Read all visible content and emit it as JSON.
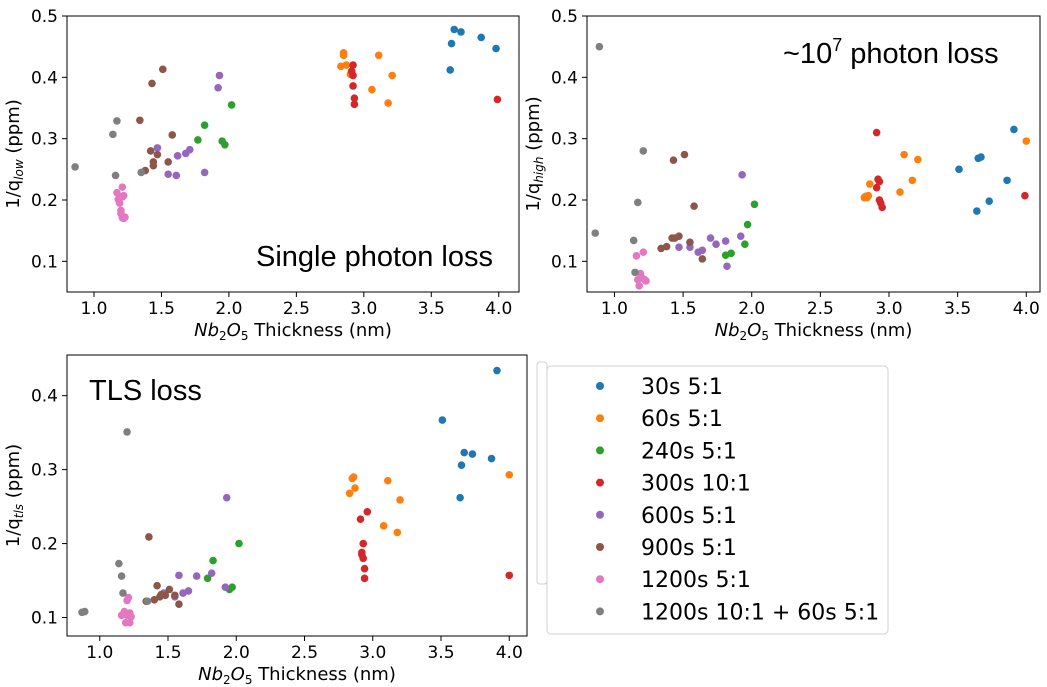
{
  "colors": {
    "30s 5:1": "#1f77b4",
    "60s 5:1": "#ff7f0e",
    "240s 5:1": "#2ca02c",
    "300s 10:1": "#d62728",
    "600s 5:1": "#9467bd",
    "900s 5:1": "#8c564b",
    "1200s 5:1": "#e377c2",
    "1200s 10:1 + 60s 5:1": "#7f7f7f"
  },
  "legend": {
    "entries": [
      "30s 5:1",
      "60s 5:1",
      "240s 5:1",
      "300s 10:1",
      "600s 5:1",
      "900s 5:1",
      "1200s 5:1",
      "1200s 10:1 + 60s 5:1"
    ]
  },
  "chart_data": [
    {
      "id": "low",
      "type": "scatter",
      "annotation": "Single photon loss",
      "xlabel_main": "Nb",
      "xlabel_sub1": "2",
      "xlabel_mid": "O",
      "xlabel_sub2": "5",
      "xlabel_rest": " Thickness (nm)",
      "ylabel_main": "1/q",
      "ylabel_sub": "low",
      "ylabel_rest": " (ppm)",
      "xlim": [
        0.8,
        4.15
      ],
      "ylim": [
        0.05,
        0.5
      ],
      "xticks": [
        1.0,
        1.5,
        2.0,
        2.5,
        3.0,
        3.5,
        4.0
      ],
      "xtick_labels": [
        "1.0",
        "1.5",
        "2.0",
        "2.5",
        "3.0",
        "3.5",
        "4.0"
      ],
      "yticks": [
        0.1,
        0.2,
        0.3,
        0.4,
        0.5
      ],
      "ytick_labels": [
        "0.1",
        "0.2",
        "0.3",
        "0.4",
        "0.5"
      ],
      "series": [
        {
          "name": "30s 5:1",
          "points": [
            [
              3.64,
              0.412
            ],
            [
              3.65,
              0.455
            ],
            [
              3.67,
              0.478
            ],
            [
              3.72,
              0.474
            ],
            [
              3.87,
              0.465
            ],
            [
              3.98,
              0.447
            ]
          ]
        },
        {
          "name": "60s 5:1",
          "points": [
            [
              2.83,
              0.418
            ],
            [
              2.85,
              0.436
            ],
            [
              2.85,
              0.44
            ],
            [
              2.87,
              0.42
            ],
            [
              2.9,
              0.405
            ],
            [
              3.06,
              0.38
            ],
            [
              3.11,
              0.436
            ],
            [
              3.18,
              0.358
            ],
            [
              3.21,
              0.403
            ]
          ]
        },
        {
          "name": "240s 5:1",
          "points": [
            [
              1.77,
              0.298
            ],
            [
              1.82,
              0.322
            ],
            [
              1.95,
              0.296
            ],
            [
              1.97,
              0.29
            ],
            [
              2.02,
              0.355
            ]
          ]
        },
        {
          "name": "300s 10:1",
          "points": [
            [
              2.91,
              0.41
            ],
            [
              2.92,
              0.42
            ],
            [
              2.92,
              0.403
            ],
            [
              2.92,
              0.386
            ],
            [
              2.93,
              0.366
            ],
            [
              2.93,
              0.356
            ],
            [
              3.99,
              0.364
            ]
          ]
        },
        {
          "name": "600s 5:1",
          "points": [
            [
              1.47,
              0.285
            ],
            [
              1.55,
              0.242
            ],
            [
              1.61,
              0.24
            ],
            [
              1.62,
              0.272
            ],
            [
              1.68,
              0.276
            ],
            [
              1.71,
              0.282
            ],
            [
              1.82,
              0.245
            ],
            [
              1.92,
              0.383
            ],
            [
              1.93,
              0.403
            ]
          ]
        },
        {
          "name": "900s 5:1",
          "points": [
            [
              1.34,
              0.33
            ],
            [
              1.38,
              0.248
            ],
            [
              1.42,
              0.28
            ],
            [
              1.43,
              0.39
            ],
            [
              1.44,
              0.262
            ],
            [
              1.44,
              0.256
            ],
            [
              1.47,
              0.274
            ],
            [
              1.51,
              0.413
            ],
            [
              1.55,
              0.262
            ],
            [
              1.58,
              0.306
            ]
          ]
        },
        {
          "name": "1200s 5:1",
          "points": [
            [
              1.17,
              0.212
            ],
            [
              1.18,
              0.201
            ],
            [
              1.19,
              0.195
            ],
            [
              1.2,
              0.178
            ],
            [
              1.2,
              0.183
            ],
            [
              1.21,
              0.171
            ],
            [
              1.22,
              0.17
            ],
            [
              1.23,
              0.172
            ],
            [
              1.21,
              0.205
            ],
            [
              1.22,
              0.207
            ],
            [
              1.21,
              0.221
            ]
          ]
        },
        {
          "name": "1200s 10:1 + 60s 5:1",
          "points": [
            [
              0.86,
              0.254
            ],
            [
              1.14,
              0.307
            ],
            [
              1.16,
              0.24
            ],
            [
              1.17,
              0.329
            ],
            [
              1.35,
              0.245
            ]
          ]
        }
      ]
    },
    {
      "id": "high",
      "type": "scatter",
      "annotation_base": "~10",
      "annotation_sup": "7",
      "annotation_rest": " photon loss",
      "xlabel_main": "Nb",
      "xlabel_sub1": "2",
      "xlabel_mid": "O",
      "xlabel_sub2": "5",
      "xlabel_rest": " Thickness (nm)",
      "ylabel_main": "1/q",
      "ylabel_sub": "high",
      "ylabel_rest": " (ppm)",
      "xlim": [
        0.8,
        4.1
      ],
      "ylim": [
        0.05,
        0.5
      ],
      "xticks": [
        1.0,
        1.5,
        2.0,
        2.5,
        3.0,
        3.5,
        4.0
      ],
      "xtick_labels": [
        "1.0",
        "1.5",
        "2.0",
        "2.5",
        "3.0",
        "3.5",
        "4.0"
      ],
      "yticks": [
        0.1,
        0.2,
        0.3,
        0.4,
        0.5
      ],
      "ytick_labels": [
        "0.1",
        "0.2",
        "0.3",
        "0.4",
        "0.5"
      ],
      "series": [
        {
          "name": "30s 5:1",
          "points": [
            [
              3.51,
              0.25
            ],
            [
              3.64,
              0.182
            ],
            [
              3.65,
              0.268
            ],
            [
              3.67,
              0.27
            ],
            [
              3.73,
              0.198
            ],
            [
              3.86,
              0.232
            ],
            [
              3.91,
              0.315
            ]
          ]
        },
        {
          "name": "60s 5:1",
          "points": [
            [
              2.82,
              0.204
            ],
            [
              2.83,
              0.206
            ],
            [
              2.84,
              0.204
            ],
            [
              2.85,
              0.207
            ],
            [
              2.86,
              0.226
            ],
            [
              3.08,
              0.213
            ],
            [
              3.11,
              0.274
            ],
            [
              3.17,
              0.232
            ],
            [
              3.21,
              0.266
            ],
            [
              4.0,
              0.296
            ]
          ]
        },
        {
          "name": "240s 5:1",
          "points": [
            [
              1.81,
              0.11
            ],
            [
              1.85,
              0.113
            ],
            [
              1.95,
              0.128
            ],
            [
              1.97,
              0.16
            ],
            [
              2.02,
              0.193
            ]
          ]
        },
        {
          "name": "300s 10:1",
          "points": [
            [
              2.91,
              0.31
            ],
            [
              2.91,
              0.22
            ],
            [
              2.92,
              0.234
            ],
            [
              2.93,
              0.23
            ],
            [
              2.93,
              0.2
            ],
            [
              2.94,
              0.195
            ],
            [
              2.95,
              0.188
            ],
            [
              3.99,
              0.207
            ]
          ]
        },
        {
          "name": "600s 5:1",
          "points": [
            [
              1.47,
              0.123
            ],
            [
              1.55,
              0.123
            ],
            [
              1.61,
              0.115
            ],
            [
              1.64,
              0.118
            ],
            [
              1.7,
              0.138
            ],
            [
              1.74,
              0.128
            ],
            [
              1.81,
              0.133
            ],
            [
              1.82,
              0.092
            ],
            [
              1.92,
              0.141
            ],
            [
              1.93,
              0.241
            ]
          ]
        },
        {
          "name": "900s 5:1",
          "points": [
            [
              1.34,
              0.121
            ],
            [
              1.38,
              0.124
            ],
            [
              1.42,
              0.138
            ],
            [
              1.43,
              0.265
            ],
            [
              1.44,
              0.138
            ],
            [
              1.47,
              0.141
            ],
            [
              1.51,
              0.274
            ],
            [
              1.55,
              0.131
            ],
            [
              1.58,
              0.19
            ],
            [
              1.64,
              0.104
            ]
          ]
        },
        {
          "name": "1200s 5:1",
          "points": [
            [
              1.16,
              0.109
            ],
            [
              1.17,
              0.07
            ],
            [
              1.18,
              0.06
            ],
            [
              1.19,
              0.08
            ],
            [
              1.2,
              0.073
            ],
            [
              1.21,
              0.115
            ],
            [
              1.22,
              0.07
            ],
            [
              1.23,
              0.068
            ]
          ]
        },
        {
          "name": "1200s 10:1 + 60s 5:1",
          "points": [
            [
              0.86,
              0.146
            ],
            [
              0.89,
              0.45
            ],
            [
              1.14,
              0.134
            ],
            [
              1.15,
              0.082
            ],
            [
              1.17,
              0.196
            ],
            [
              1.21,
              0.28
            ]
          ]
        }
      ]
    },
    {
      "id": "tls",
      "type": "scatter",
      "annotation": "TLS loss",
      "xlabel_main": "Nb",
      "xlabel_sub1": "2",
      "xlabel_mid": "O",
      "xlabel_sub2": "5",
      "xlabel_rest": " Thickness (nm)",
      "ylabel_main": "1/q",
      "ylabel_sub": "tls",
      "ylabel_rest": " (ppm)",
      "xlim": [
        0.76,
        4.13
      ],
      "ylim": [
        0.075,
        0.455
      ],
      "xticks": [
        1.0,
        1.5,
        2.0,
        2.5,
        3.0,
        3.5,
        4.0
      ],
      "xtick_labels": [
        "1.0",
        "1.5",
        "2.0",
        "2.5",
        "3.0",
        "3.5",
        "4.0"
      ],
      "yticks": [
        0.1,
        0.2,
        0.3,
        0.4
      ],
      "ytick_labels": [
        "0.1",
        "0.2",
        "0.3",
        "0.4"
      ],
      "series": [
        {
          "name": "30s 5:1",
          "points": [
            [
              3.51,
              0.367
            ],
            [
              3.64,
              0.262
            ],
            [
              3.65,
              0.306
            ],
            [
              3.67,
              0.323
            ],
            [
              3.73,
              0.321
            ],
            [
              3.87,
              0.315
            ],
            [
              3.91,
              0.434
            ]
          ]
        },
        {
          "name": "60s 5:1",
          "points": [
            [
              2.83,
              0.268
            ],
            [
              2.85,
              0.288
            ],
            [
              2.86,
              0.29
            ],
            [
              2.87,
              0.275
            ],
            [
              3.08,
              0.224
            ],
            [
              3.11,
              0.285
            ],
            [
              3.18,
              0.215
            ],
            [
              3.2,
              0.259
            ],
            [
              4.0,
              0.293
            ]
          ]
        },
        {
          "name": "240s 5:1",
          "points": [
            [
              1.79,
              0.153
            ],
            [
              1.83,
              0.177
            ],
            [
              1.95,
              0.138
            ],
            [
              1.97,
              0.141
            ],
            [
              2.02,
              0.2
            ]
          ]
        },
        {
          "name": "300s 10:1",
          "points": [
            [
              2.91,
              0.233
            ],
            [
              2.92,
              0.185
            ],
            [
              2.92,
              0.188
            ],
            [
              2.93,
              0.2
            ],
            [
              2.93,
              0.18
            ],
            [
              2.94,
              0.166
            ],
            [
              2.94,
              0.153
            ],
            [
              2.96,
              0.243
            ],
            [
              4.0,
              0.157
            ]
          ]
        },
        {
          "name": "600s 5:1",
          "points": [
            [
              1.47,
              0.133
            ],
            [
              1.55,
              0.128
            ],
            [
              1.58,
              0.157
            ],
            [
              1.61,
              0.133
            ],
            [
              1.65,
              0.136
            ],
            [
              1.71,
              0.156
            ],
            [
              1.82,
              0.16
            ],
            [
              1.92,
              0.141
            ],
            [
              1.93,
              0.262
            ]
          ]
        },
        {
          "name": "900s 5:1",
          "points": [
            [
              1.34,
              0.122
            ],
            [
              1.36,
              0.209
            ],
            [
              1.4,
              0.124
            ],
            [
              1.42,
              0.143
            ],
            [
              1.44,
              0.128
            ],
            [
              1.45,
              0.131
            ],
            [
              1.48,
              0.13
            ],
            [
              1.51,
              0.138
            ],
            [
              1.55,
              0.13
            ],
            [
              1.58,
              0.118
            ]
          ]
        },
        {
          "name": "1200s 5:1",
          "points": [
            [
              1.16,
              0.103
            ],
            [
              1.18,
              0.108
            ],
            [
              1.19,
              0.093
            ],
            [
              1.2,
              0.103
            ],
            [
              1.2,
              0.123
            ],
            [
              1.21,
              0.127
            ],
            [
              1.22,
              0.093
            ],
            [
              1.22,
              0.106
            ],
            [
              1.23,
              0.101
            ]
          ]
        },
        {
          "name": "1200s 10:1 + 60s 5:1",
          "points": [
            [
              0.87,
              0.107
            ],
            [
              0.89,
              0.108
            ],
            [
              1.14,
              0.173
            ],
            [
              1.16,
              0.156
            ],
            [
              1.17,
              0.133
            ],
            [
              1.2,
              0.351
            ],
            [
              1.35,
              0.122
            ]
          ]
        }
      ]
    }
  ]
}
